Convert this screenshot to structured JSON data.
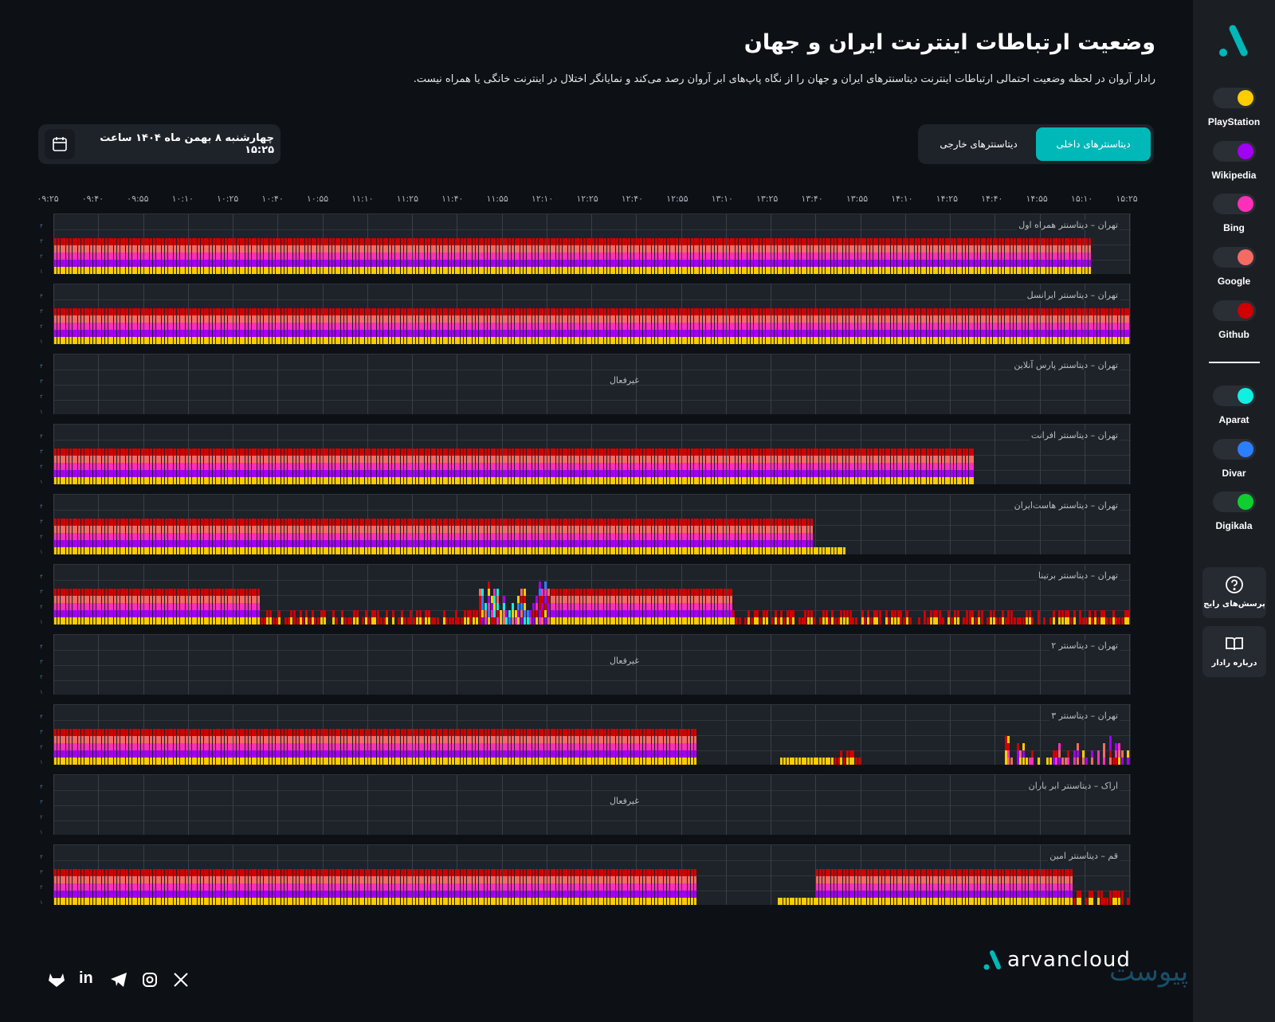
{
  "header": {
    "title": "وضعیت ارتباطات اینترنت ایران و جهان",
    "subtitle": "رادار آروان در لحظه وضعیت احتمالی ارتباطات اینترنت دیتاسنترهای ایران و جهان را از نگاه پاپ‌های ابر آروان رصد می‌کند و نمایانگر اختلال در اینترنت خانگی یا همراه نیست."
  },
  "date": {
    "label": "چهارشنبه ۸ بهمن ماه ۱۴۰۴ ساعت ۱۵:۲۵",
    "icon": "calendar-icon"
  },
  "tabs": [
    {
      "label": "دیتاسنترهای داخلی",
      "active": true
    },
    {
      "label": "دیتاسنترهای خارجی",
      "active": false
    }
  ],
  "time_axis": {
    "start": "09:25",
    "end": "15:25",
    "ticks": [
      "۰۹:۲۵",
      "۰۹:۴۰",
      "۰۹:۵۵",
      "۱۰:۱۰",
      "۱۰:۲۵",
      "۱۰:۴۰",
      "۱۰:۵۵",
      "۱۱:۱۰",
      "۱۱:۲۵",
      "۱۱:۴۰",
      "۱۱:۵۵",
      "۱۲:۱۰",
      "۱۲:۲۵",
      "۱۲:۴۰",
      "۱۲:۵۵",
      "۱۳:۱۰",
      "۱۳:۲۵",
      "۱۳:۴۰",
      "۱۳:۵۵",
      "۱۴:۱۰",
      "۱۴:۲۵",
      "۱۴:۴۰",
      "۱۴:۵۵",
      "۱۵:۱۰",
      "۱۵:۲۵"
    ]
  },
  "y_ticks": [
    "۴",
    "۳",
    "۲",
    "۱"
  ],
  "inactive_label": "غیرفعال",
  "services": [
    {
      "name": "PlayStation",
      "color": "#ffcc00"
    },
    {
      "name": "Wikipedia",
      "color": "#a100f2"
    },
    {
      "name": "Bing",
      "color": "#ff2fb8"
    },
    {
      "name": "Google",
      "color": "#f56a62"
    },
    {
      "name": "Github",
      "color": "#d00000"
    },
    {
      "name": "Aparat",
      "color": "#10f0e0"
    },
    {
      "name": "Divar",
      "color": "#2b7fff"
    },
    {
      "name": "Digikala",
      "color": "#0fcf30"
    }
  ],
  "datacenters": [
    {
      "label": "تهران – دیتاسنتر همراه اول",
      "active": true,
      "segments": [
        [
          "09:25",
          "15:12",
          "full"
        ]
      ]
    },
    {
      "label": "تهران – دیتاسنتر ایرانسل",
      "active": true,
      "segments": [
        [
          "09:25",
          "15:25",
          "full"
        ]
      ]
    },
    {
      "label": "تهران – دیتاسنتر پارس آنلاین",
      "active": false,
      "segments": []
    },
    {
      "label": "تهران – دیتاسنتر افرانت",
      "active": true,
      "segments": [
        [
          "09:25",
          "14:33",
          "full"
        ]
      ]
    },
    {
      "label": "تهران – دیتاسنتر هاست‌ایران",
      "active": true,
      "segments": [
        [
          "09:25",
          "13:39",
          "full"
        ],
        [
          "13:39",
          "13:50",
          "yellow"
        ]
      ]
    },
    {
      "label": "تهران – دیتاسنتر برتینا",
      "active": true,
      "segments": [
        [
          "09:25",
          "10:34",
          "full"
        ],
        [
          "10:34",
          "11:47",
          "sparse"
        ],
        [
          "11:47",
          "12:11",
          "spike"
        ],
        [
          "12:11",
          "13:12",
          "full"
        ],
        [
          "13:12",
          "15:25",
          "sparse"
        ]
      ]
    },
    {
      "label": "تهران – دیتاسنتر ۲",
      "active": false,
      "segments": []
    },
    {
      "label": "تهران – دیتاسنتر ۳",
      "active": true,
      "segments": [
        [
          "09:25",
          "13:00",
          "full"
        ],
        [
          "13:28",
          "13:50",
          "yellow"
        ],
        [
          "13:46",
          "13:56",
          "sparse"
        ],
        [
          "14:43",
          "15:25",
          "partial"
        ]
      ]
    },
    {
      "label": "اراک – دیتاسنتر ابر باران",
      "active": false,
      "segments": []
    },
    {
      "label": "قم – دیتاسنتر امین",
      "active": true,
      "segments": [
        [
          "09:25",
          "13:00",
          "full"
        ],
        [
          "13:27",
          "13:40",
          "yellow"
        ],
        [
          "13:40",
          "15:06",
          "full"
        ],
        [
          "15:06",
          "15:25",
          "sparse"
        ]
      ]
    }
  ],
  "sidebar": {
    "faq": "پرسش‌های رایج",
    "about": "درباره رادار"
  },
  "footer": {
    "brand": "arvancloud",
    "social": [
      "gitlab-icon",
      "linkedin-icon",
      "telegram-icon",
      "instagram-icon",
      "x-icon"
    ],
    "watermark": "پیوست"
  }
}
